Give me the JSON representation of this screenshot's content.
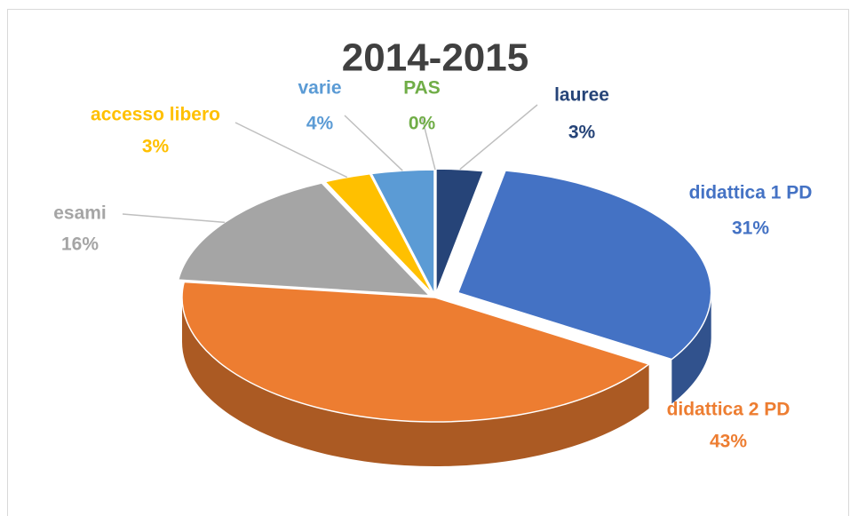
{
  "chart_data": {
    "type": "pie",
    "title": "2014-2015",
    "categories": [
      "lauree",
      "didattica 1 PD",
      "didattica 2 PD",
      "esami",
      "accesso libero",
      "varie",
      "PAS"
    ],
    "values": [
      3,
      31,
      43,
      16,
      3,
      4,
      0
    ],
    "value_labels": [
      "3%",
      "31%",
      "43%",
      "16%",
      "3%",
      "4%",
      "0%"
    ],
    "colors": [
      "#264478",
      "#4472c4",
      "#ed7d31",
      "#a5a5a5",
      "#ffc000",
      "#5b9bd5",
      "#70ad47"
    ]
  }
}
